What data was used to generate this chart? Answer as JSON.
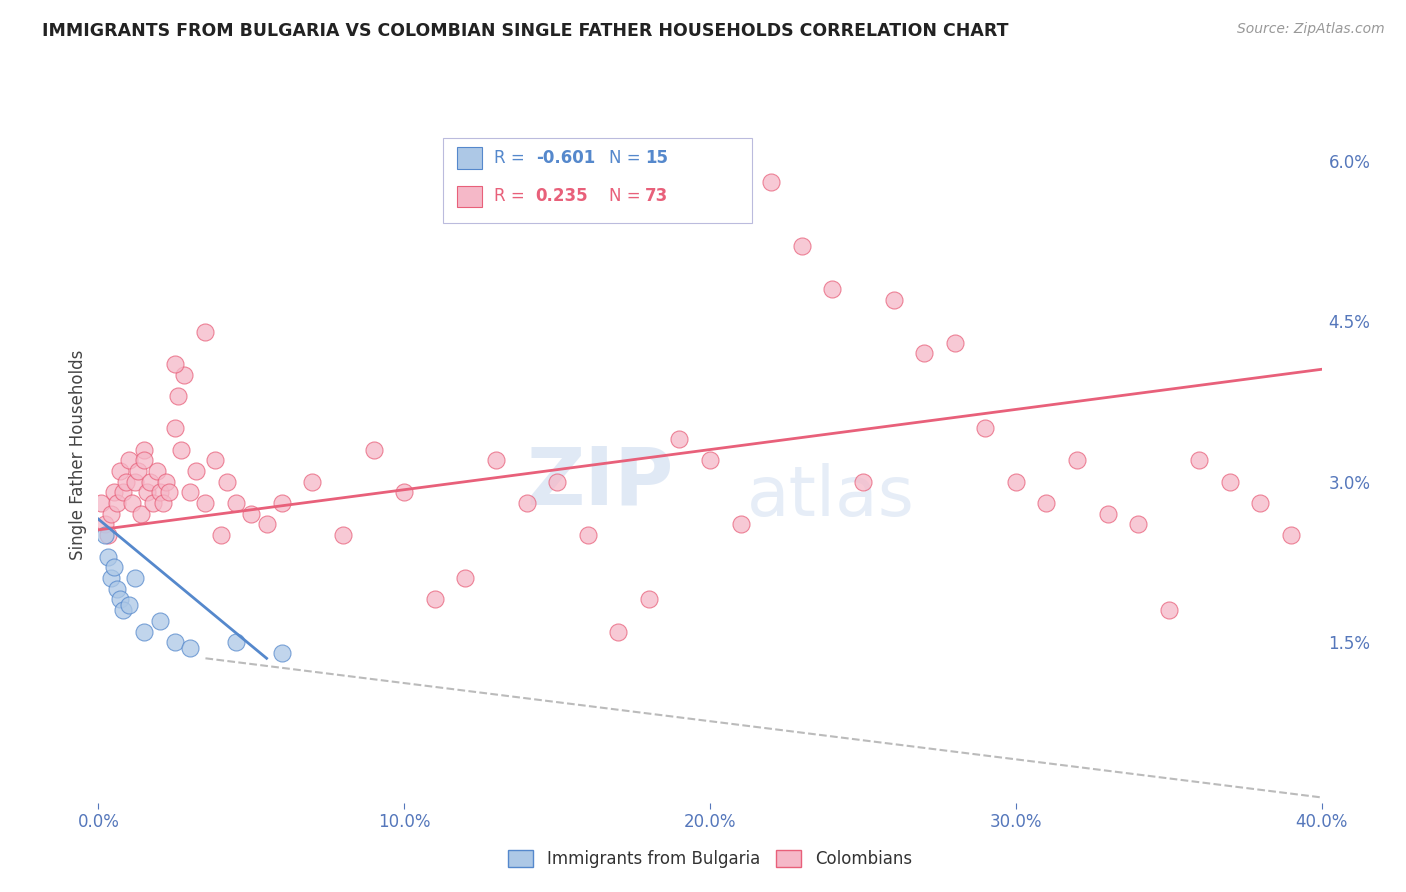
{
  "title": "IMMIGRANTS FROM BULGARIA VS COLOMBIAN SINGLE FATHER HOUSEHOLDS CORRELATION CHART",
  "source": "Source: ZipAtlas.com",
  "xlabel_ticks": [
    "0.0%",
    "10.0%",
    "20.0%",
    "30.0%",
    "40.0%"
  ],
  "xlabel_vals": [
    0.0,
    10.0,
    20.0,
    30.0,
    40.0
  ],
  "ylabel_ticks": [
    "1.5%",
    "3.0%",
    "4.5%",
    "6.0%"
  ],
  "ylabel_vals": [
    1.5,
    3.0,
    4.5,
    6.0
  ],
  "xlim": [
    0.0,
    40.0
  ],
  "ylim": [
    0.0,
    6.5
  ],
  "watermark_zip": "ZIP",
  "watermark_atlas": "atlas",
  "legend_blue_label": "Immigrants from Bulgaria",
  "legend_pink_label": "Colombians",
  "R_blue": "-0.601",
  "N_blue": "15",
  "R_pink": "0.235",
  "N_pink": "73",
  "blue_color": "#adc8e6",
  "blue_line_color": "#5588cc",
  "pink_color": "#f5b8c8",
  "pink_line_color": "#e8607a",
  "axis_label_color": "#5577bb",
  "title_color": "#222222",
  "grid_color": "#cccccc",
  "bg_color": "#ffffff",
  "blue_scatter_x": [
    0.2,
    0.3,
    0.4,
    0.5,
    0.6,
    0.7,
    0.8,
    1.0,
    1.2,
    1.5,
    2.0,
    2.5,
    3.0,
    4.5,
    6.0
  ],
  "blue_scatter_y": [
    2.5,
    2.3,
    2.1,
    2.2,
    2.0,
    1.9,
    1.8,
    1.85,
    2.1,
    1.6,
    1.7,
    1.5,
    1.45,
    1.5,
    1.4
  ],
  "pink_scatter_x": [
    0.1,
    0.2,
    0.3,
    0.4,
    0.5,
    0.6,
    0.7,
    0.8,
    0.9,
    1.0,
    1.1,
    1.2,
    1.3,
    1.4,
    1.5,
    1.6,
    1.7,
    1.8,
    1.9,
    2.0,
    2.1,
    2.2,
    2.3,
    2.5,
    2.6,
    2.7,
    2.8,
    3.0,
    3.2,
    3.5,
    3.8,
    4.0,
    4.2,
    4.5,
    5.0,
    5.5,
    6.0,
    7.0,
    8.0,
    9.0,
    10.0,
    11.0,
    12.0,
    13.0,
    14.0,
    15.0,
    16.0,
    17.0,
    18.0,
    19.0,
    20.0,
    21.0,
    22.0,
    23.0,
    24.0,
    25.0,
    26.0,
    27.0,
    28.0,
    29.0,
    30.0,
    31.0,
    32.0,
    33.0,
    34.0,
    35.0,
    36.0,
    37.0,
    38.0,
    39.0,
    3.5,
    1.5,
    2.5
  ],
  "pink_scatter_y": [
    2.8,
    2.6,
    2.5,
    2.7,
    2.9,
    2.8,
    3.1,
    2.9,
    3.0,
    3.2,
    2.8,
    3.0,
    3.1,
    2.7,
    3.3,
    2.9,
    3.0,
    2.8,
    3.1,
    2.9,
    2.8,
    3.0,
    2.9,
    3.5,
    3.8,
    3.3,
    4.0,
    2.9,
    3.1,
    2.8,
    3.2,
    2.5,
    3.0,
    2.8,
    2.7,
    2.6,
    2.8,
    3.0,
    2.5,
    3.3,
    2.9,
    1.9,
    2.1,
    3.2,
    2.8,
    3.0,
    2.5,
    1.6,
    1.9,
    3.4,
    3.2,
    2.6,
    5.8,
    5.2,
    4.8,
    3.0,
    4.7,
    4.2,
    4.3,
    3.5,
    3.0,
    2.8,
    3.2,
    2.7,
    2.6,
    1.8,
    3.2,
    3.0,
    2.8,
    2.5,
    4.4,
    3.2,
    4.1
  ],
  "blue_line_x": [
    0.0,
    5.5
  ],
  "blue_line_y": [
    2.65,
    1.35
  ],
  "pink_line_x": [
    0.0,
    40.0
  ],
  "pink_line_y": [
    2.55,
    4.05
  ],
  "dashed_line_x": [
    3.5,
    40.0
  ],
  "dashed_line_y": [
    1.35,
    0.05
  ]
}
